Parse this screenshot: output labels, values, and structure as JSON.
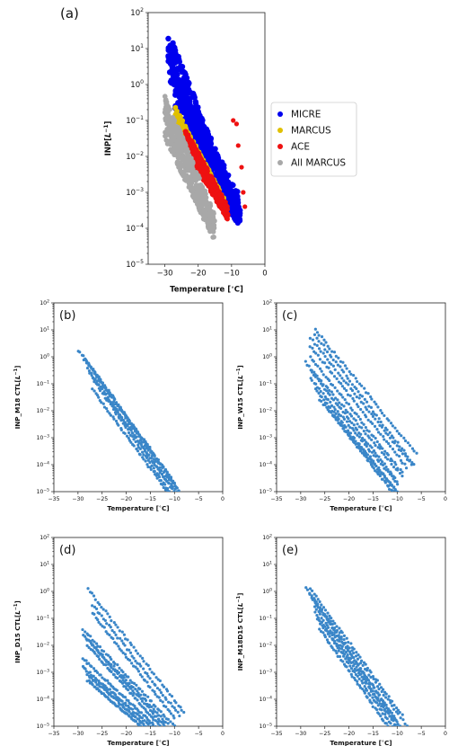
{
  "chart_data": [
    {
      "id": "a",
      "panel_label": "(a)",
      "type": "scatter",
      "xlabel": "Temperature [$^\\circ$C]",
      "ylabel": "INP[$L^{-1}$]",
      "xlim": [
        -35,
        0
      ],
      "ylim": [
        1e-05,
        100
      ],
      "yscale": "log",
      "x_ticks": [
        -30,
        -20,
        -10,
        0
      ],
      "x_tick_labels": [
        "−30",
        "−20",
        "−10",
        "0"
      ],
      "legend": {
        "placement": "right-outside"
      },
      "series": [
        {
          "name": "MICRE",
          "color": "#0000ee",
          "marker_size": 3.2,
          "bands": [
            {
              "t_start": -29,
              "t_end": -7.5,
              "log_high_start": 1.5,
              "log_high_end": -3.5,
              "log_low_start": 0.2,
              "log_low_end": -3.8
            },
            {
              "t_start": -27,
              "t_end": -8,
              "log_high_start": 0.3,
              "log_high_end": -3.0,
              "log_low_start": -1.0,
              "log_low_end": -3.9
            }
          ]
        },
        {
          "name": "MARCUS",
          "color": "#e0c000",
          "marker_size": 2.8,
          "bands": [
            {
              "t_start": -27,
              "t_end": -12,
              "log_high_start": -0.6,
              "log_high_end": -3.2,
              "log_low_start": -1.0,
              "log_low_end": -3.6
            }
          ]
        },
        {
          "name": "ACE",
          "color": "#ee1111",
          "marker_size": 2.6,
          "bands": [
            {
              "t_start": -24,
              "t_end": -11,
              "log_high_start": -1.2,
              "log_high_end": -3.4,
              "log_low_start": -1.8,
              "log_low_end": -3.8
            }
          ],
          "points": [
            {
              "x": -9.5,
              "y": 0.1
            },
            {
              "x": -8.5,
              "y": 0.08
            },
            {
              "x": -8,
              "y": 0.02
            },
            {
              "x": -7,
              "y": 0.005
            },
            {
              "x": -6.5,
              "y": 0.001
            },
            {
              "x": -6,
              "y": 0.0004
            }
          ]
        },
        {
          "name": "All MARCUS",
          "color": "#a8a8a8",
          "marker_size": 2.8,
          "bands": [
            {
              "t_start": -30,
              "t_end": -15,
              "log_high_start": -0.3,
              "log_high_end": -3.6,
              "log_low_start": -1.5,
              "log_low_end": -4.4
            }
          ]
        }
      ]
    },
    {
      "id": "b",
      "panel_label": "(b)",
      "type": "scatter",
      "xlabel": "Temperature [$^\\circ$C]",
      "ylabel": "INP_M18 CTL[$L^{-1}$]",
      "xlim": [
        -35,
        0
      ],
      "ylim": [
        1e-05,
        100
      ],
      "yscale": "log",
      "x_ticks": [
        -35,
        -30,
        -25,
        -20,
        -15,
        -10,
        -5,
        0
      ],
      "x_tick_labels": [
        "−35",
        "−30",
        "−25",
        "−20",
        "−15",
        "−10",
        "−5",
        "0"
      ],
      "series": [
        {
          "color": "#3a86c8",
          "marker_size": 1.6,
          "lines": [
            {
              "t_start": -30,
              "t_end": -9,
              "log_start": 0.25,
              "log_end": -5.0
            },
            {
              "t_start": -29,
              "t_end": -9.5,
              "log_start": 0.05,
              "log_end": -4.8
            },
            {
              "t_start": -28.5,
              "t_end": -9.5,
              "log_start": -0.1,
              "log_end": -5.0
            },
            {
              "t_start": -28,
              "t_end": -10,
              "log_start": -0.2,
              "log_end": -4.7
            },
            {
              "t_start": -28,
              "t_end": -10,
              "log_start": -0.45,
              "log_end": -5.0
            },
            {
              "t_start": -27.5,
              "t_end": -10.5,
              "log_start": -0.6,
              "log_end": -4.9
            },
            {
              "t_start": -27,
              "t_end": -11,
              "log_start": -0.8,
              "log_end": -5.0
            },
            {
              "t_start": -27,
              "t_end": -11.5,
              "log_start": -1.2,
              "log_end": -5.0
            }
          ]
        }
      ]
    },
    {
      "id": "c",
      "panel_label": "(c)",
      "type": "scatter",
      "xlabel": "Temperature [$^\\circ$C]",
      "ylabel": "INP_W15 CTL[$L^{-1}$]",
      "xlim": [
        -35,
        0
      ],
      "ylim": [
        1e-05,
        100
      ],
      "yscale": "log",
      "x_ticks": [
        -35,
        -30,
        -25,
        -20,
        -15,
        -10,
        -5,
        0
      ],
      "x_tick_labels": [
        "−35",
        "−30",
        "−25",
        "−20",
        "−15",
        "−10",
        "−5",
        "0"
      ],
      "series": [
        {
          "color": "#3a86c8",
          "marker_size": 1.6,
          "lines": [
            {
              "t_start": -27,
              "t_end": -6,
              "log_start": 1.0,
              "log_end": -3.6
            },
            {
              "t_start": -27,
              "t_end": -6.5,
              "log_start": 0.8,
              "log_end": -4.0
            },
            {
              "t_start": -28,
              "t_end": -7,
              "log_start": 0.7,
              "log_end": -4.0
            },
            {
              "t_start": -28,
              "t_end": -8,
              "log_start": 0.4,
              "log_end": -4.1
            },
            {
              "t_start": -28,
              "t_end": -9,
              "log_start": 0.0,
              "log_end": -4.3
            },
            {
              "t_start": -29,
              "t_end": -9,
              "log_start": -0.2,
              "log_end": -4.4
            },
            {
              "t_start": -28,
              "t_end": -10,
              "log_start": -0.5,
              "log_end": -4.6
            },
            {
              "t_start": -28,
              "t_end": -10,
              "log_start": -0.8,
              "log_end": -4.7
            },
            {
              "t_start": -27,
              "t_end": -10,
              "log_start": -1.2,
              "log_end": -5.0
            },
            {
              "t_start": -26,
              "t_end": -10,
              "log_start": -1.6,
              "log_end": -5.0
            },
            {
              "t_start": -24,
              "t_end": -11,
              "log_start": -2.0,
              "log_end": -5.0
            }
          ]
        }
      ]
    },
    {
      "id": "d",
      "panel_label": "(d)",
      "type": "scatter",
      "xlabel": "Temperature [$^\\circ$C]",
      "ylabel": "INP_D15 CTL[$L^{-1}$]",
      "xlim": [
        -35,
        0
      ],
      "ylim": [
        1e-05,
        100
      ],
      "yscale": "log",
      "x_ticks": [
        -35,
        -30,
        -25,
        -20,
        -15,
        -10,
        -5,
        0
      ],
      "x_tick_labels": [
        "−35",
        "−30",
        "−25",
        "−20",
        "−15",
        "−10",
        "−5",
        "0"
      ],
      "series": [
        {
          "color": "#3a86c8",
          "marker_size": 1.6,
          "lines": [
            {
              "t_start": -28,
              "t_end": -8,
              "log_start": 0.1,
              "log_end": -4.5
            },
            {
              "t_start": -27,
              "t_end": -9,
              "log_start": -0.5,
              "log_end": -4.6
            },
            {
              "t_start": -27,
              "t_end": -10,
              "log_start": -0.8,
              "log_end": -4.7
            },
            {
              "t_start": -29,
              "t_end": -10,
              "log_start": -1.4,
              "log_end": -5.0
            },
            {
              "t_start": -29,
              "t_end": -11,
              "log_start": -1.6,
              "log_end": -5.0
            },
            {
              "t_start": -28,
              "t_end": -12,
              "log_start": -1.8,
              "log_end": -5.0
            },
            {
              "t_start": -28,
              "t_end": -13,
              "log_start": -2.0,
              "log_end": -5.0
            },
            {
              "t_start": -29,
              "t_end": -14,
              "log_start": -2.5,
              "log_end": -5.0
            },
            {
              "t_start": -29,
              "t_end": -15,
              "log_start": -2.8,
              "log_end": -5.0
            },
            {
              "t_start": -28,
              "t_end": -16,
              "log_start": -3.1,
              "log_end": -5.0
            },
            {
              "t_start": -28,
              "t_end": -17,
              "log_start": -3.3,
              "log_end": -5.0
            }
          ]
        }
      ]
    },
    {
      "id": "e",
      "panel_label": "(e)",
      "type": "scatter",
      "xlabel": "Temperature [$^\\circ$C]",
      "ylabel": "INP_M18D15 CTL[$L^{-1}$]",
      "xlim": [
        -35,
        0
      ],
      "ylim": [
        1e-05,
        100
      ],
      "yscale": "log",
      "x_ticks": [
        -35,
        -30,
        -25,
        -20,
        -15,
        -10,
        -5,
        0
      ],
      "x_tick_labels": [
        "−35",
        "−30",
        "−25",
        "−20",
        "−15",
        "−10",
        "−5",
        "0"
      ],
      "series": [
        {
          "color": "#3a86c8",
          "marker_size": 1.6,
          "lines": [
            {
              "t_start": -29,
              "t_end": -8,
              "log_start": 0.15,
              "log_end": -5.0
            },
            {
              "t_start": -28,
              "t_end": -9,
              "log_start": 0.1,
              "log_end": -4.6
            },
            {
              "t_start": -28,
              "t_end": -9.5,
              "log_start": -0.1,
              "log_end": -5.0
            },
            {
              "t_start": -27.5,
              "t_end": -10,
              "log_start": -0.3,
              "log_end": -4.8
            },
            {
              "t_start": -27,
              "t_end": -10,
              "log_start": -0.6,
              "log_end": -5.0
            },
            {
              "t_start": -27,
              "t_end": -10.5,
              "log_start": -0.8,
              "log_end": -4.9
            },
            {
              "t_start": -26.5,
              "t_end": -11,
              "log_start": -1.0,
              "log_end": -5.0
            },
            {
              "t_start": -26,
              "t_end": -12,
              "log_start": -1.4,
              "log_end": -5.0
            }
          ]
        }
      ]
    }
  ]
}
